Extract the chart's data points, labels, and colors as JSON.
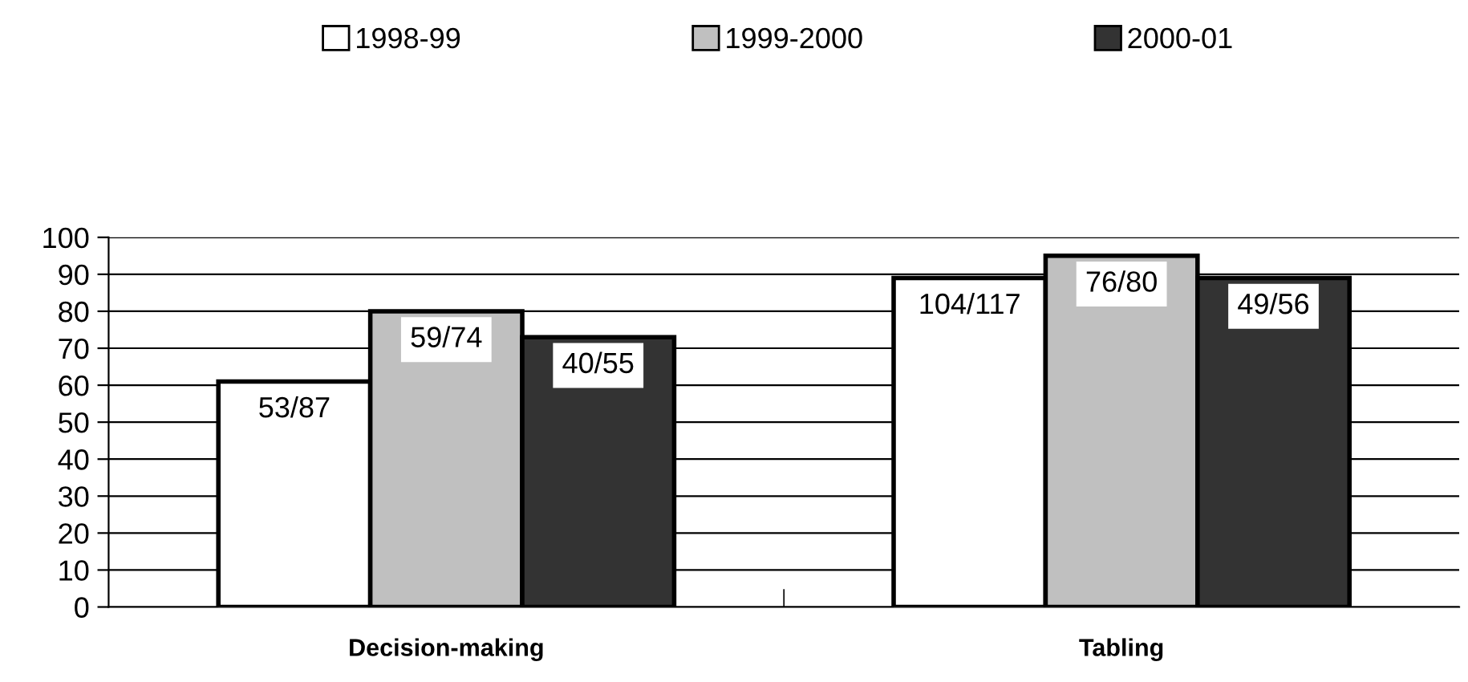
{
  "chart_data": {
    "type": "bar",
    "categories": [
      "Decision-making",
      "Tabling"
    ],
    "series": [
      {
        "name": "1998-99",
        "color": "#ffffff",
        "values": [
          61,
          89
        ],
        "value_labels": [
          "53/87",
          "104/117"
        ]
      },
      {
        "name": "1999-2000",
        "color": "#c0c0c0",
        "values": [
          80,
          95
        ],
        "value_labels": [
          "59/74",
          "76/80"
        ]
      },
      {
        "name": "2000-01",
        "color": "#333333",
        "values": [
          73,
          89
        ],
        "value_labels": [
          "40/55",
          "49/56"
        ]
      }
    ],
    "ylim": [
      0,
      100
    ],
    "yticks": [
      0,
      10,
      20,
      30,
      40,
      50,
      60,
      70,
      80,
      90,
      100
    ],
    "grid": "y",
    "legend": "top"
  }
}
